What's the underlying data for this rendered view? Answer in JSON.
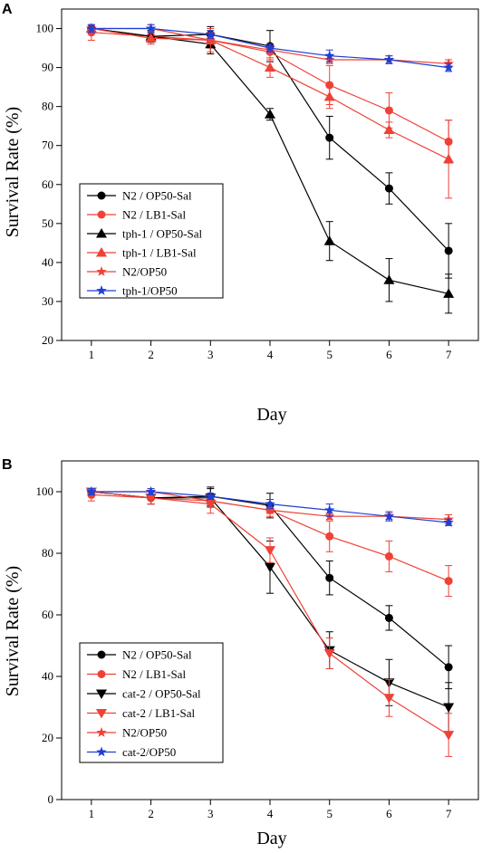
{
  "chart_data": [
    {
      "panel_label": "A",
      "type": "line",
      "xlabel": "Day",
      "ylabel": "Survival Rate (%)",
      "x": [
        1,
        2,
        3,
        4,
        5,
        6,
        7
      ],
      "xlim": [
        0.5,
        7.5
      ],
      "ylim": [
        20,
        105
      ],
      "yticks": [
        20,
        30,
        40,
        50,
        60,
        70,
        80,
        90,
        100
      ],
      "legend_position": "bottom-left",
      "series": [
        {
          "name": "N2 / OP50-Sal",
          "color": "#000000",
          "marker": "circle",
          "values": [
            100,
            98,
            98.5,
            95.5,
            72,
            59,
            43
          ],
          "errors": [
            0.5,
            1.5,
            2,
            4,
            5.5,
            4,
            7
          ]
        },
        {
          "name": "N2 / LB1-Sal",
          "color": "#ef4136",
          "marker": "circle",
          "values": [
            99,
            98,
            97,
            94,
            85.5,
            79,
            71
          ],
          "errors": [
            2,
            1.5,
            2,
            2,
            5,
            4.5,
            5.5
          ]
        },
        {
          "name": "tph-1 / OP50-Sal",
          "color": "#000000",
          "marker": "triangle-up",
          "values": [
            100,
            98,
            96,
            78,
            45.5,
            35.5,
            32
          ],
          "errors": [
            0.5,
            1.5,
            2.5,
            1.5,
            5,
            5.5,
            5
          ]
        },
        {
          "name": "tph-1 / LB1-Sal",
          "color": "#ef4136",
          "marker": "triangle-up",
          "values": [
            100,
            97.5,
            97,
            90,
            82.5,
            74,
            66.5
          ],
          "errors": [
            0.5,
            1.5,
            3,
            2.5,
            3,
            2,
            10
          ]
        },
        {
          "name": "N2/OP50",
          "color": "#ef4136",
          "marker": "star",
          "values": [
            100,
            100,
            97,
            94.5,
            92,
            92,
            91
          ],
          "errors": [
            1,
            1,
            1,
            1,
            1,
            1,
            1
          ]
        },
        {
          "name": "tph-1/OP50",
          "color": "#1f3fd6",
          "marker": "star",
          "values": [
            100,
            100,
            98.5,
            95,
            93,
            92,
            90
          ],
          "errors": [
            1,
            1,
            1,
            1,
            1.5,
            1,
            1
          ]
        }
      ]
    },
    {
      "panel_label": "B",
      "type": "line",
      "xlabel": "Day",
      "ylabel": "Survival Rate (%)",
      "x": [
        1,
        2,
        3,
        4,
        5,
        6,
        7
      ],
      "xlim": [
        0.5,
        7.5
      ],
      "ylim": [
        0,
        110
      ],
      "yticks": [
        0,
        20,
        40,
        60,
        80,
        100
      ],
      "legend_position": "bottom-left",
      "series": [
        {
          "name": "N2 / OP50-Sal",
          "color": "#000000",
          "marker": "circle",
          "values": [
            100,
            98,
            98.5,
            95.5,
            72,
            59,
            43
          ],
          "errors": [
            0.5,
            2,
            3,
            4,
            5.5,
            4,
            7
          ]
        },
        {
          "name": "N2 / LB1-Sal",
          "color": "#ef4136",
          "marker": "circle",
          "values": [
            99,
            98,
            97,
            94,
            85.5,
            79,
            71
          ],
          "errors": [
            2,
            2,
            2,
            2,
            5,
            5,
            5
          ]
        },
        {
          "name": "cat-2 / OP50-Sal",
          "color": "#000000",
          "marker": "triangle-down",
          "values": [
            100,
            98,
            98,
            75.5,
            48.5,
            38,
            30
          ],
          "errors": [
            0.5,
            2,
            3,
            8.5,
            6,
            7.5,
            8
          ]
        },
        {
          "name": "cat-2 / LB1-Sal",
          "color": "#ef4136",
          "marker": "triangle-down",
          "values": [
            100,
            98,
            96,
            81,
            47.5,
            33,
            21
          ],
          "errors": [
            0.5,
            2,
            3,
            4,
            5,
            6,
            7
          ]
        },
        {
          "name": "N2/OP50",
          "color": "#ef4136",
          "marker": "star",
          "values": [
            100,
            100,
            97,
            94,
            92,
            92,
            91
          ],
          "errors": [
            1,
            1,
            1,
            1,
            1,
            1,
            1.5
          ]
        },
        {
          "name": "cat-2/OP50",
          "color": "#1f3fd6",
          "marker": "star",
          "values": [
            100,
            100,
            98.5,
            96,
            94,
            92,
            90
          ],
          "errors": [
            1,
            1,
            1,
            1.5,
            2,
            1.5,
            1
          ]
        }
      ]
    }
  ]
}
